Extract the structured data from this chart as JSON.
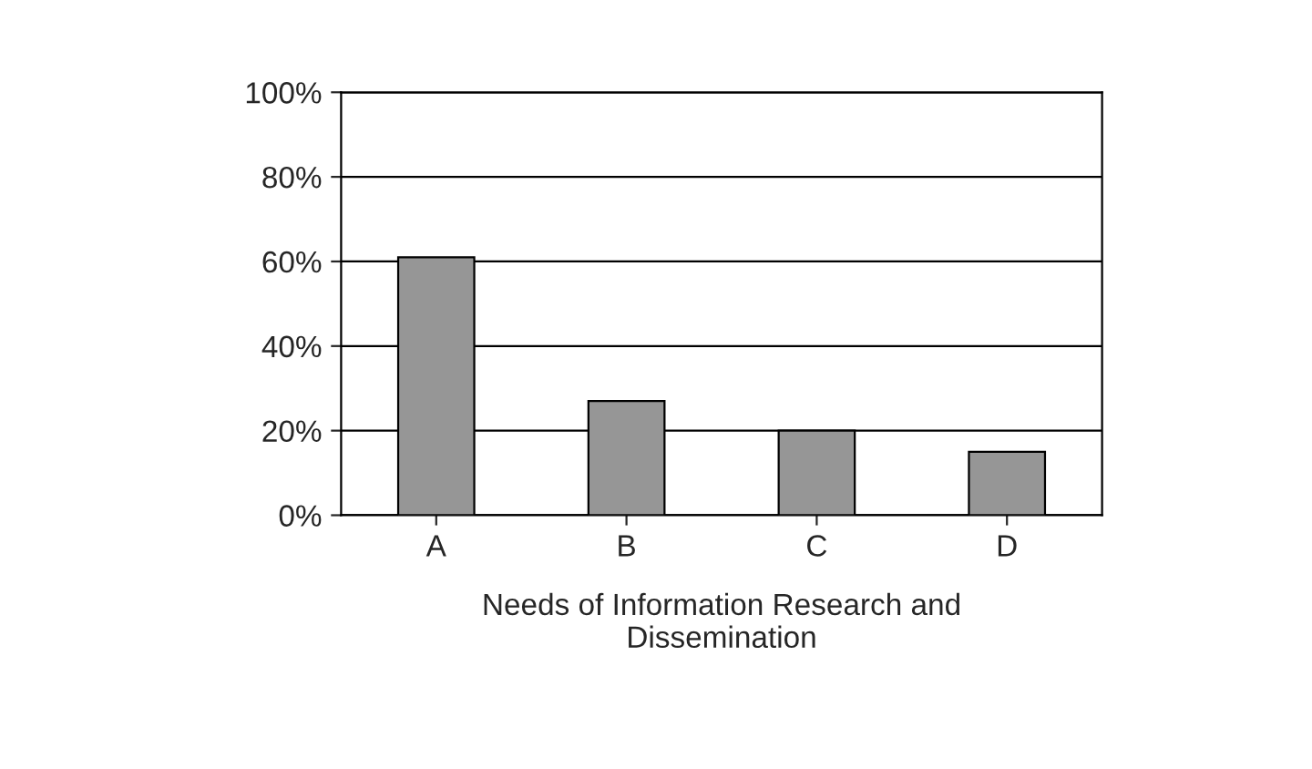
{
  "chart_data": {
    "type": "bar",
    "xlabel": "Needs of Information Research and\nDissemination",
    "categories": [
      "A",
      "B",
      "C",
      "D"
    ],
    "values": [
      61,
      27,
      20,
      15
    ],
    "color": "#969696",
    "ylim": [
      0,
      100
    ],
    "yticks": [
      {
        "value": 0,
        "label": "0%"
      },
      {
        "value": 20,
        "label": "20%"
      },
      {
        "value": 40,
        "label": "40%"
      },
      {
        "value": 60,
        "label": "60%"
      },
      {
        "value": 80,
        "label": "80%"
      },
      {
        "value": 100,
        "label": "100%"
      }
    ],
    "grid": "y",
    "legend": false
  }
}
